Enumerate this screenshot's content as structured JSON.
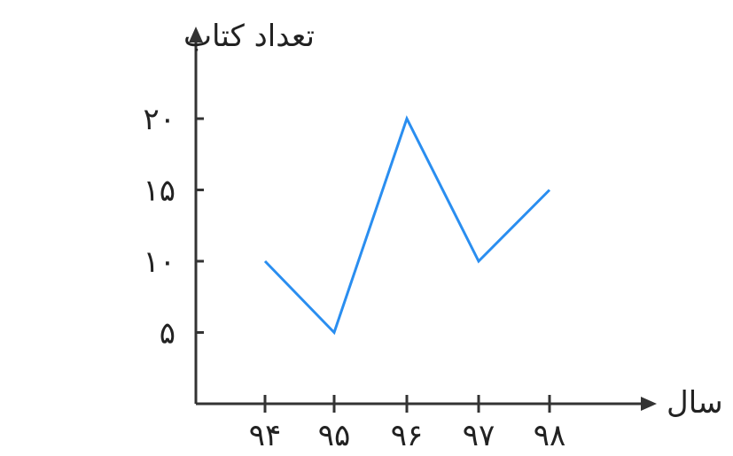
{
  "colors": {
    "axis": "#333333",
    "line": "#2a8ef0",
    "text": "#222222"
  },
  "chart_data": {
    "type": "line",
    "title": "",
    "xlabel": "سال",
    "ylabel": "تعداد کتاب",
    "categories": [
      "۹۴",
      "۹۵",
      "۹۶",
      "۹۷",
      "۹۸"
    ],
    "series": [
      {
        "values": [
          10,
          5,
          20,
          10,
          15
        ]
      }
    ],
    "yticks": [
      5,
      10,
      15,
      20
    ],
    "ytick_labels": [
      "۵",
      "۱۰",
      "۱۵",
      "۲۰"
    ],
    "ylim": [
      0,
      25
    ],
    "grid": false,
    "legend": "none"
  }
}
